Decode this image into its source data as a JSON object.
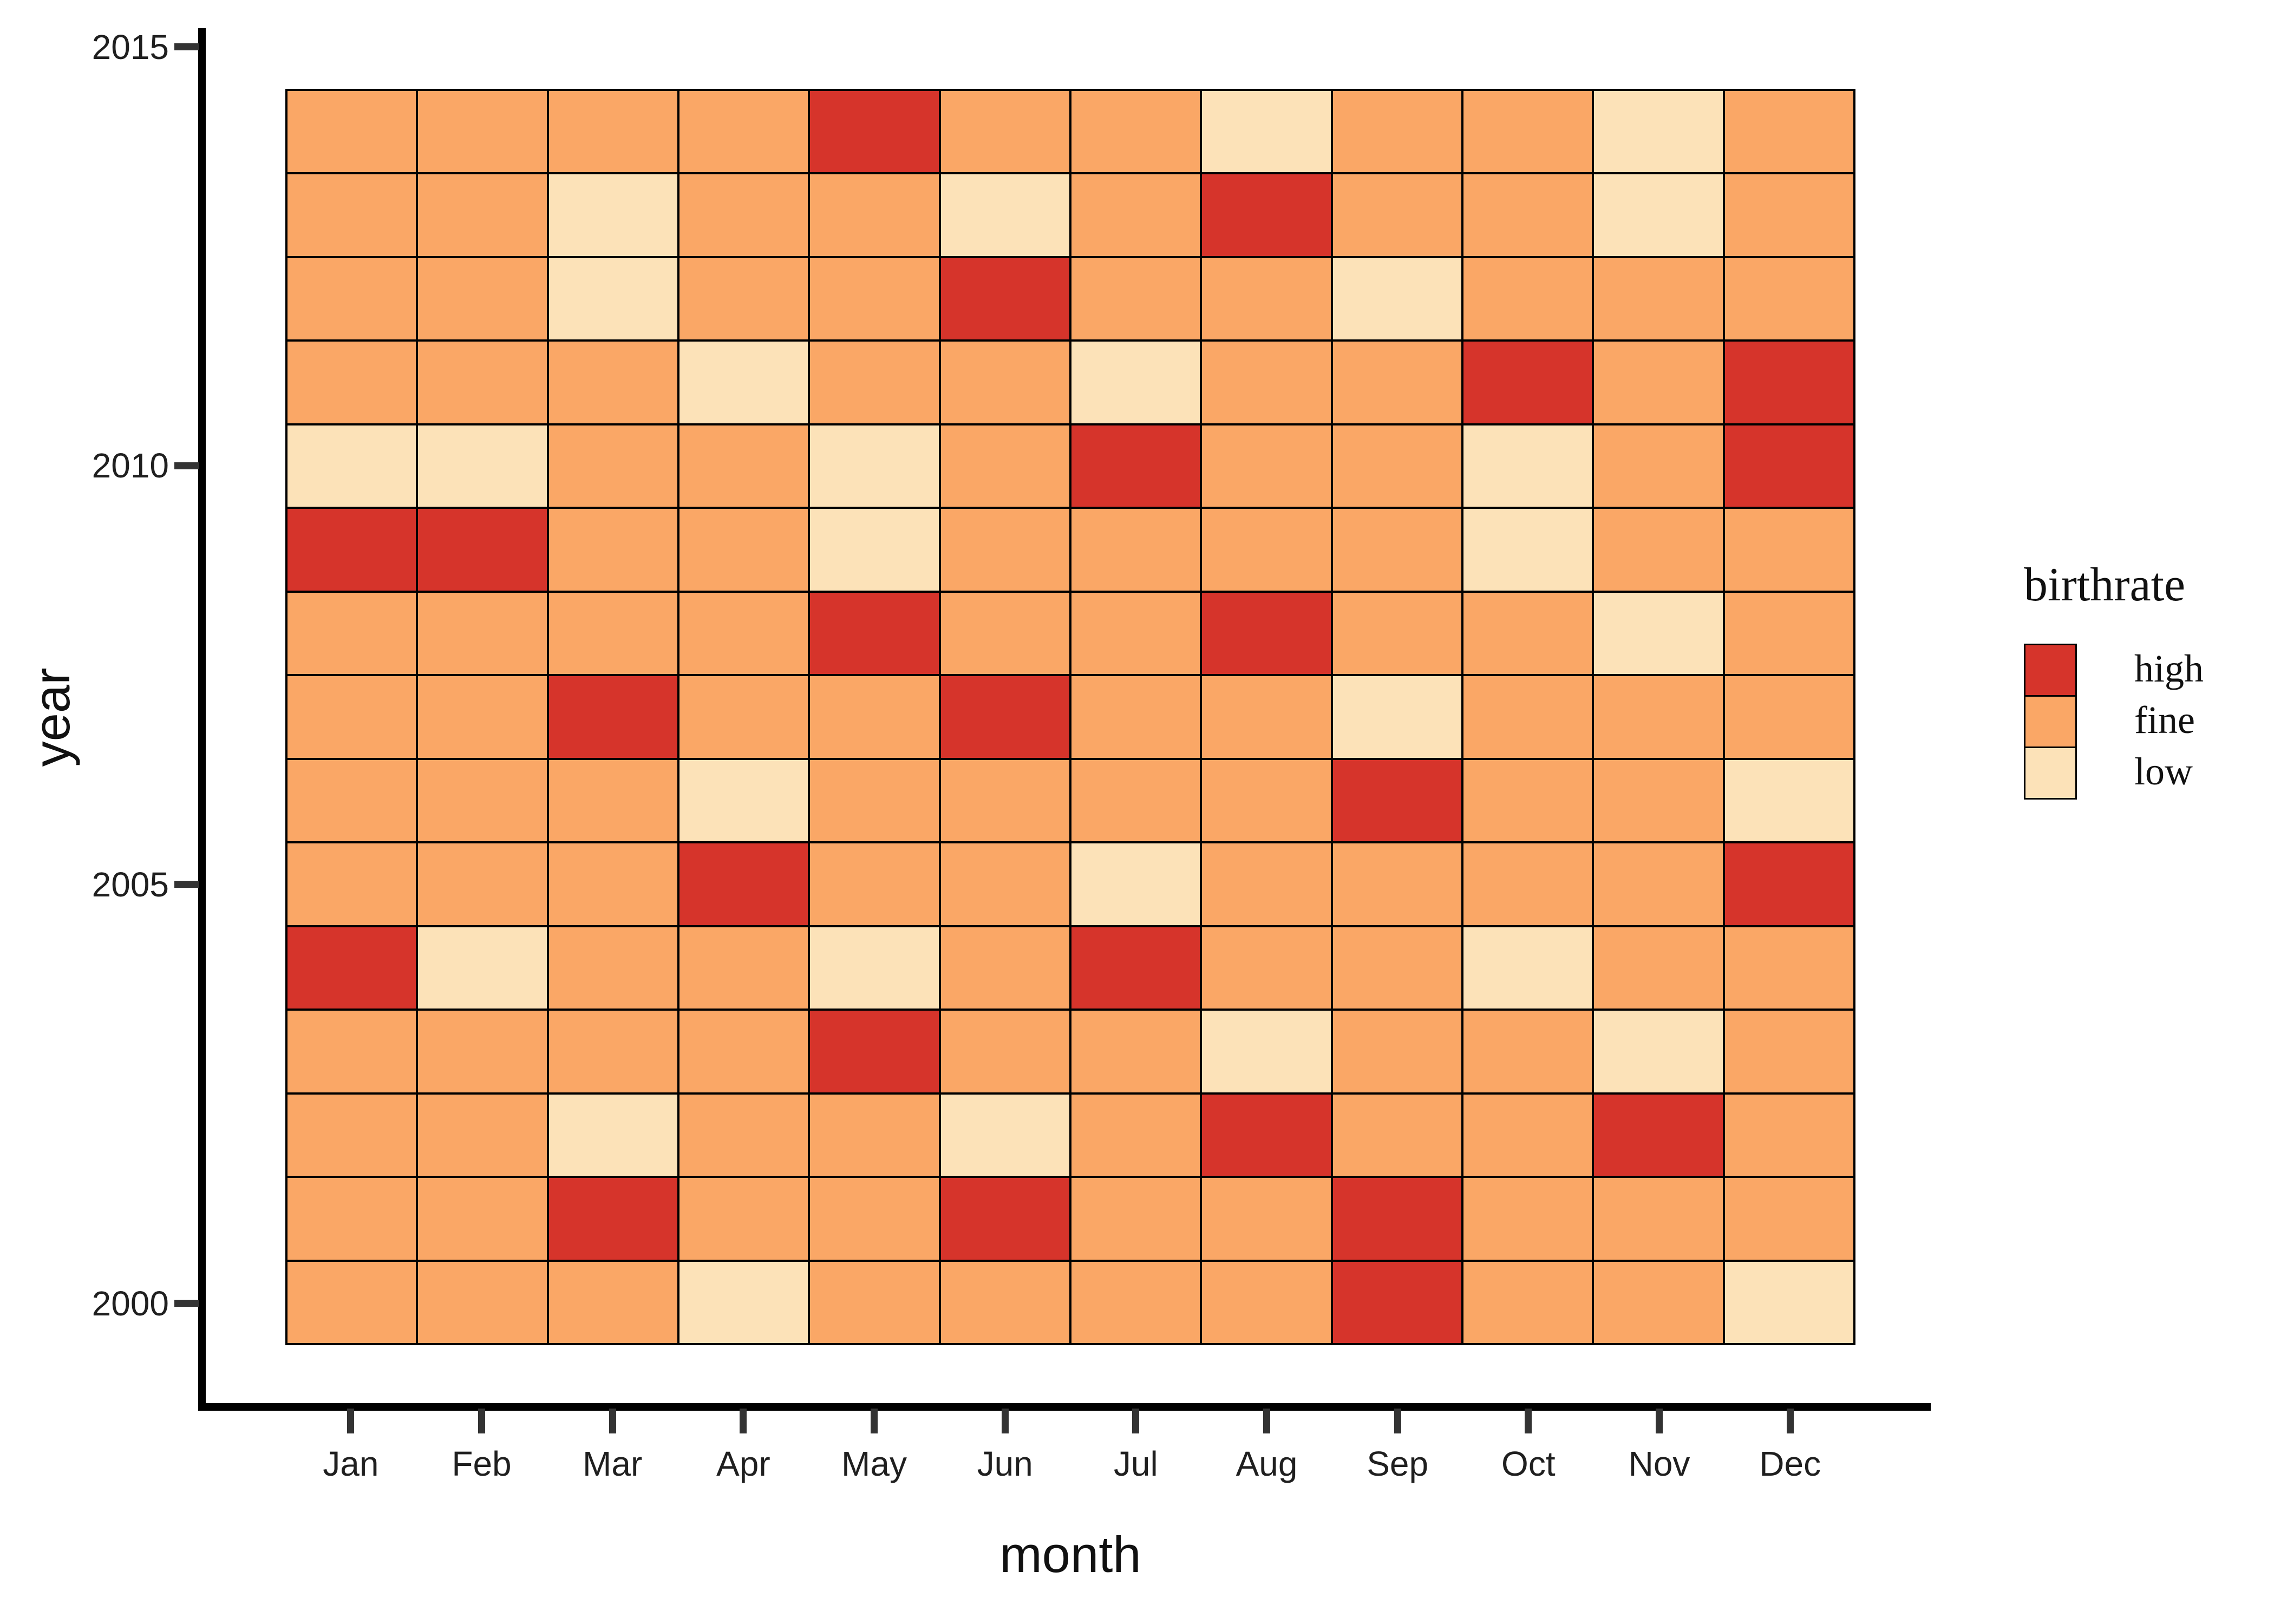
{
  "chart_data": {
    "type": "heatmap",
    "title": "",
    "xlabel": "month",
    "ylabel": "year",
    "x_categories": [
      "Jan",
      "Feb",
      "Mar",
      "Apr",
      "May",
      "Jun",
      "Jul",
      "Aug",
      "Sep",
      "Oct",
      "Nov",
      "Dec"
    ],
    "years_top_to_bottom": [
      2014,
      2013,
      2012,
      2011,
      2010,
      2009,
      2008,
      2007,
      2006,
      2005,
      2004,
      2003,
      2002,
      2001,
      2000
    ],
    "y_axis_ticks": [
      2015,
      2010,
      2005,
      2000
    ],
    "x_range_note": "columns Jan-Dec left to right",
    "grid_line_color": "#000000",
    "axis_line_color": "#000000",
    "tick_color": "#333333",
    "text_color": "#1f1f1f",
    "legend": {
      "title": "birthrate",
      "position": "right",
      "entries": [
        {
          "label": "high",
          "color": "#d6342b"
        },
        {
          "label": "fine",
          "color": "#faa766"
        },
        {
          "label": "low",
          "color": "#fce2b8"
        }
      ]
    },
    "matrix": [
      [
        "fine",
        "fine",
        "fine",
        "fine",
        "high",
        "fine",
        "fine",
        "low",
        "fine",
        "fine",
        "low",
        "fine"
      ],
      [
        "fine",
        "fine",
        "low",
        "fine",
        "fine",
        "low",
        "fine",
        "high",
        "fine",
        "fine",
        "low",
        "fine"
      ],
      [
        "fine",
        "fine",
        "low",
        "fine",
        "fine",
        "high",
        "fine",
        "fine",
        "low",
        "fine",
        "fine",
        "fine"
      ],
      [
        "fine",
        "fine",
        "fine",
        "low",
        "fine",
        "fine",
        "low",
        "fine",
        "fine",
        "high",
        "fine",
        "high"
      ],
      [
        "low",
        "low",
        "fine",
        "fine",
        "low",
        "fine",
        "high",
        "fine",
        "fine",
        "low",
        "fine",
        "high"
      ],
      [
        "high",
        "high",
        "fine",
        "fine",
        "low",
        "fine",
        "fine",
        "fine",
        "fine",
        "low",
        "fine",
        "fine"
      ],
      [
        "fine",
        "fine",
        "fine",
        "fine",
        "high",
        "fine",
        "fine",
        "high",
        "fine",
        "fine",
        "low",
        "fine"
      ],
      [
        "fine",
        "fine",
        "high",
        "fine",
        "fine",
        "high",
        "fine",
        "fine",
        "low",
        "fine",
        "fine",
        "fine"
      ],
      [
        "fine",
        "fine",
        "fine",
        "low",
        "fine",
        "fine",
        "fine",
        "fine",
        "high",
        "fine",
        "fine",
        "low"
      ],
      [
        "fine",
        "fine",
        "fine",
        "high",
        "fine",
        "fine",
        "low",
        "fine",
        "fine",
        "fine",
        "fine",
        "high"
      ],
      [
        "high",
        "low",
        "fine",
        "fine",
        "low",
        "fine",
        "high",
        "fine",
        "fine",
        "low",
        "fine",
        "fine"
      ],
      [
        "fine",
        "fine",
        "fine",
        "fine",
        "high",
        "fine",
        "fine",
        "low",
        "fine",
        "fine",
        "low",
        "fine"
      ],
      [
        "fine",
        "fine",
        "low",
        "fine",
        "fine",
        "low",
        "fine",
        "high",
        "fine",
        "fine",
        "high",
        "fine"
      ],
      [
        "fine",
        "fine",
        "high",
        "fine",
        "fine",
        "high",
        "fine",
        "fine",
        "high",
        "fine",
        "fine",
        "fine"
      ],
      [
        "fine",
        "fine",
        "fine",
        "low",
        "fine",
        "fine",
        "fine",
        "fine",
        "high",
        "fine",
        "fine",
        "low"
      ]
    ]
  }
}
